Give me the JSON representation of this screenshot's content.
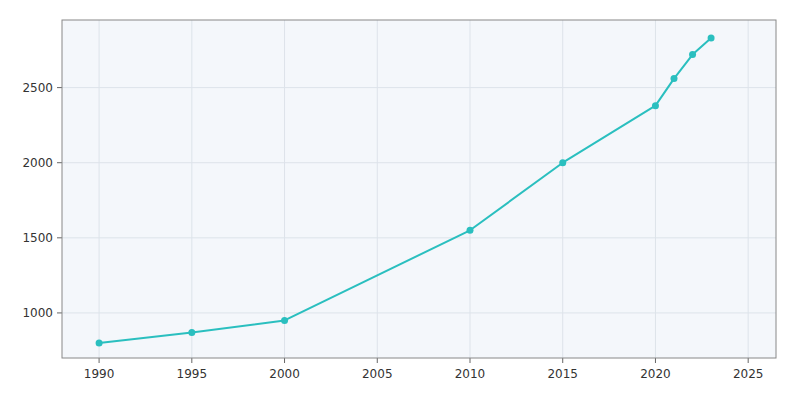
{
  "chart_data": {
    "type": "line",
    "x": [
      1990,
      1995,
      2000,
      2010,
      2015,
      2020,
      2021,
      2022,
      2023
    ],
    "values": [
      800,
      870,
      950,
      1550,
      2000,
      2380,
      2560,
      2720,
      2830
    ],
    "color": "#2abfbf",
    "marker": "circle",
    "xlim": [
      1988,
      2026.5
    ],
    "ylim": [
      700,
      2950
    ],
    "xticks": [
      1990,
      1995,
      2000,
      2005,
      2010,
      2015,
      2020,
      2025
    ],
    "yticks": [
      1000,
      1500,
      2000,
      2500
    ],
    "grid": true
  }
}
